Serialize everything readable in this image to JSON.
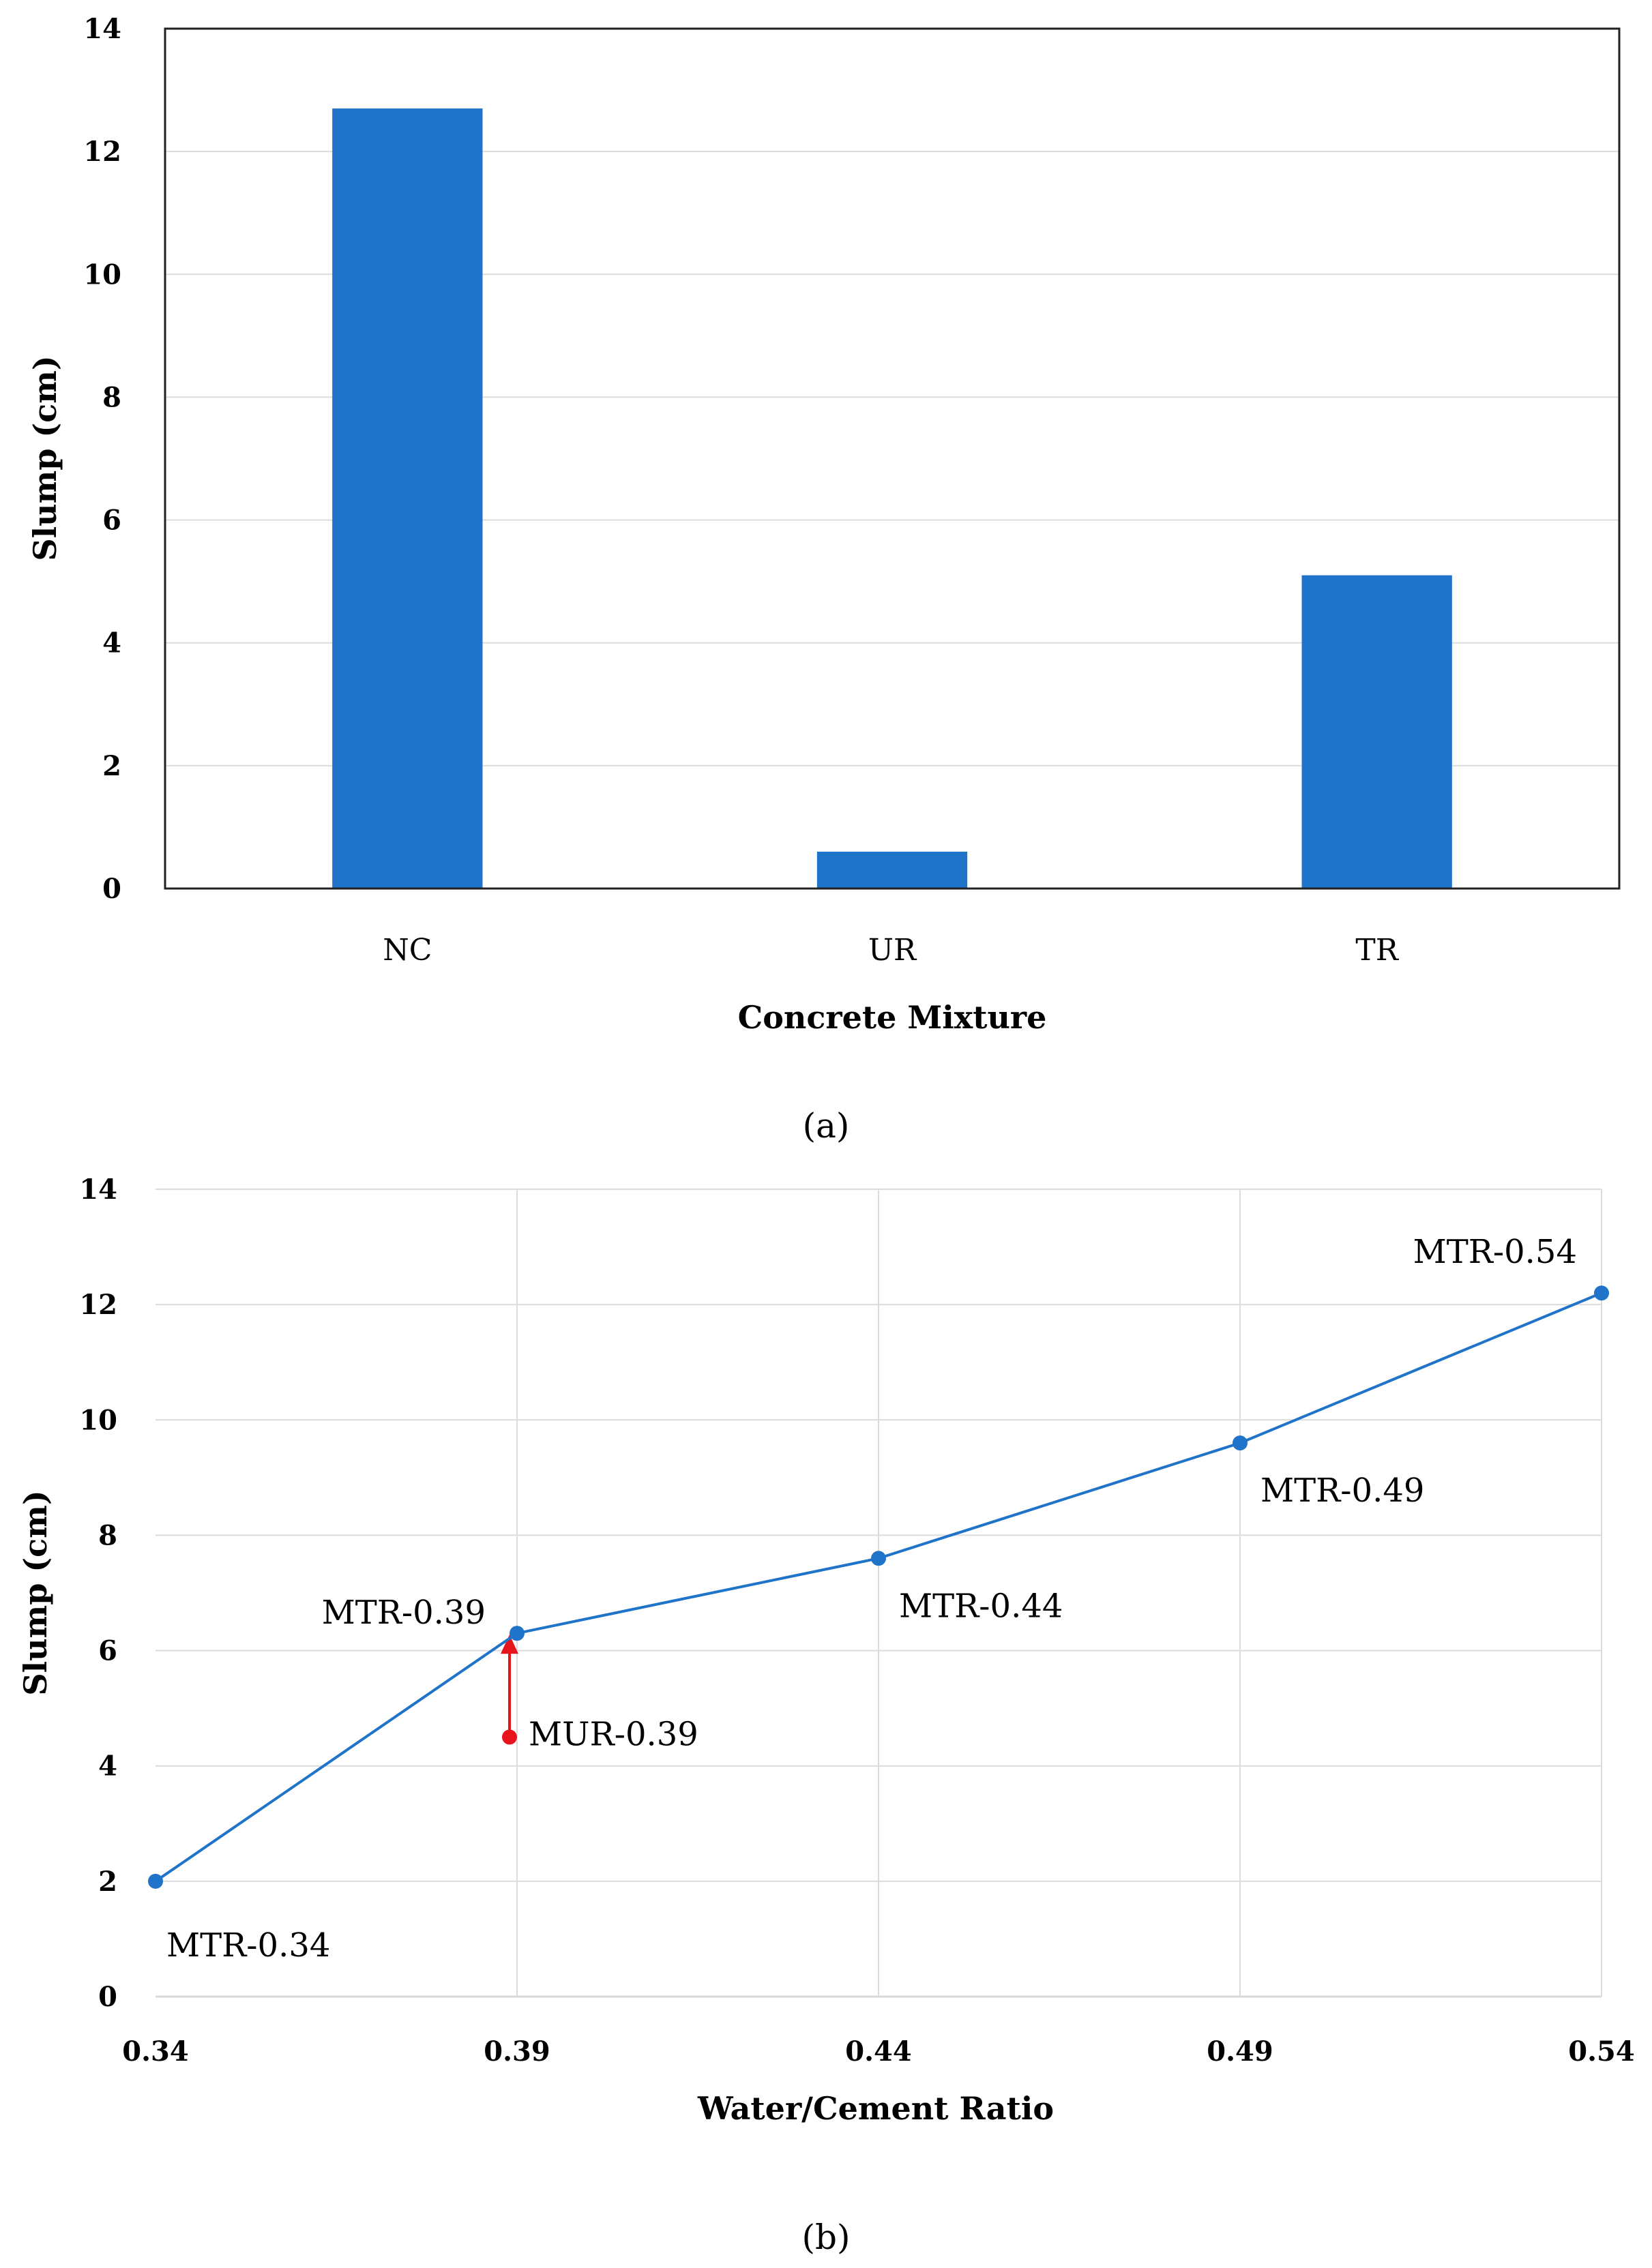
{
  "chart_data": [
    {
      "type": "bar",
      "caption": "(a)",
      "categories": [
        "NC",
        "UR",
        "TR"
      ],
      "values": [
        12.7,
        0.6,
        5.1
      ],
      "title": "",
      "xlabel": "Concrete Mixture",
      "ylabel": "Slump (cm)",
      "ylim": [
        0,
        14
      ],
      "yticks": [
        0,
        2,
        4,
        6,
        8,
        10,
        12,
        14
      ],
      "ytick_labels": [
        "0",
        "2",
        "4",
        "6",
        "8",
        "10",
        "12",
        "14"
      ],
      "grid": true,
      "color": "#1f73c8"
    },
    {
      "type": "line",
      "caption": "(b)",
      "title": "",
      "xlabel": "Water/Cement Ratio",
      "ylabel": "Slump (cm)",
      "xlim": [
        0.34,
        0.54
      ],
      "ylim": [
        0,
        14
      ],
      "xticks": [
        0.34,
        0.39,
        0.44,
        0.49,
        0.54
      ],
      "xtick_labels": [
        "0.34",
        "0.39",
        "0.44",
        "0.49",
        "0.54"
      ],
      "yticks": [
        0,
        2,
        4,
        6,
        8,
        10,
        12,
        14
      ],
      "ytick_labels": [
        "0",
        "2",
        "4",
        "6",
        "8",
        "10",
        "12",
        "14"
      ],
      "grid": true,
      "series": [
        {
          "name": "MTR",
          "color": "#1f73c8",
          "points": [
            {
              "x": 0.34,
              "y": 2.0,
              "label": "MTR-0.34",
              "label_position": "below-right"
            },
            {
              "x": 0.39,
              "y": 6.3,
              "label": "MTR-0.39",
              "label_position": "left"
            },
            {
              "x": 0.44,
              "y": 7.6,
              "label": "MTR-0.44",
              "label_position": "below-right"
            },
            {
              "x": 0.49,
              "y": 9.6,
              "label": "MTR-0.49",
              "label_position": "below-right"
            },
            {
              "x": 0.54,
              "y": 12.2,
              "label": "MTR-0.54",
              "label_position": "above-left"
            }
          ]
        }
      ],
      "annotation": {
        "label": "MUR-0.39",
        "x": 0.39,
        "y": 4.5,
        "arrow_to_y": 6.3,
        "color": "#e8141c",
        "label_position": "right"
      }
    }
  ]
}
